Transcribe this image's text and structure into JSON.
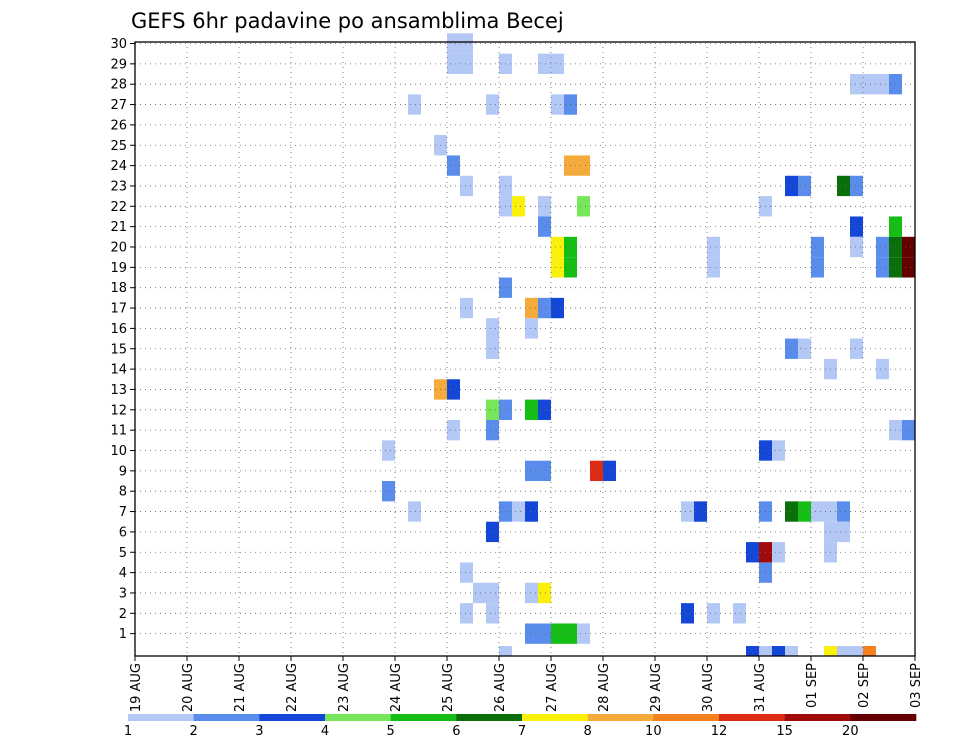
{
  "chart_data": {
    "type": "heatmap",
    "title": "GEFS 6hr padavine po ansamblima Becej",
    "xlabel": "",
    "ylabel": "",
    "x_tick_labels": [
      "19 AUG",
      "20 AUG",
      "21 AUG",
      "22 AUG",
      "23 AUG",
      "24 AUG",
      "25 AUG",
      "26 AUG",
      "27 AUG",
      "28 AUG",
      "29 AUG",
      "30 AUG",
      "31 AUG",
      "01 SEP",
      "02 SEP",
      "03 SEP"
    ],
    "y_tick_labels": [
      "1",
      "2",
      "3",
      "4",
      "5",
      "6",
      "7",
      "8",
      "9",
      "10",
      "11",
      "12",
      "13",
      "14",
      "15",
      "16",
      "17",
      "18",
      "19",
      "20",
      "21",
      "22",
      "23",
      "24",
      "25",
      "26",
      "27",
      "28",
      "29",
      "30"
    ],
    "grid": true,
    "time_steps_per_day": 4,
    "levels": [
      "1",
      "2",
      "3",
      "4",
      "5",
      "6",
      "7",
      "8",
      "10",
      "12",
      "15",
      "20"
    ],
    "palette": [
      "#b4c8f5",
      "#5a8ceb",
      "#1446d7",
      "#78e65a",
      "#14be14",
      "#0a6e0a",
      "#faf00a",
      "#f5aa3c",
      "#f5821e",
      "#dc2d14",
      "#a00a0a",
      "#640000"
    ],
    "cells": [
      {
        "member": 30,
        "step": 24,
        "level": 0
      },
      {
        "member": 30,
        "step": 25,
        "level": 0
      },
      {
        "member": 29,
        "step": 24,
        "level": 0
      },
      {
        "member": 29,
        "step": 25,
        "level": 0
      },
      {
        "member": 29,
        "step": 28,
        "level": 0
      },
      {
        "member": 29,
        "step": 31,
        "level": 0
      },
      {
        "member": 29,
        "step": 32,
        "level": 0
      },
      {
        "member": 28,
        "step": 55,
        "level": 0
      },
      {
        "member": 28,
        "step": 56,
        "level": 0
      },
      {
        "member": 28,
        "step": 57,
        "level": 0
      },
      {
        "member": 28,
        "step": 58,
        "level": 1
      },
      {
        "member": 27,
        "step": 21,
        "level": 0
      },
      {
        "member": 27,
        "step": 27,
        "level": 0
      },
      {
        "member": 27,
        "step": 32,
        "level": 0
      },
      {
        "member": 27,
        "step": 33,
        "level": 1
      },
      {
        "member": 25,
        "step": 23,
        "level": 0
      },
      {
        "member": 24,
        "step": 24,
        "level": 1
      },
      {
        "member": 24,
        "step": 33,
        "level": 7
      },
      {
        "member": 24,
        "step": 34,
        "level": 7
      },
      {
        "member": 23,
        "step": 25,
        "level": 0
      },
      {
        "member": 23,
        "step": 28,
        "level": 0
      },
      {
        "member": 23,
        "step": 50,
        "level": 2
      },
      {
        "member": 23,
        "step": 51,
        "level": 1
      },
      {
        "member": 23,
        "step": 54,
        "level": 5
      },
      {
        "member": 23,
        "step": 55,
        "level": 1
      },
      {
        "member": 22,
        "step": 28,
        "level": 0
      },
      {
        "member": 22,
        "step": 29,
        "level": 6
      },
      {
        "member": 22,
        "step": 31,
        "level": 0
      },
      {
        "member": 22,
        "step": 34,
        "level": 3
      },
      {
        "member": 22,
        "step": 48,
        "level": 0
      },
      {
        "member": 21,
        "step": 31,
        "level": 1
      },
      {
        "member": 21,
        "step": 55,
        "level": 2
      },
      {
        "member": 21,
        "step": 58,
        "level": 4
      },
      {
        "member": 20,
        "step": 32,
        "level": 6
      },
      {
        "member": 20,
        "step": 33,
        "level": 4
      },
      {
        "member": 20,
        "step": 44,
        "level": 0
      },
      {
        "member": 20,
        "step": 52,
        "level": 1
      },
      {
        "member": 20,
        "step": 55,
        "level": 0
      },
      {
        "member": 20,
        "step": 57,
        "level": 1
      },
      {
        "member": 20,
        "step": 58,
        "level": 5
      },
      {
        "member": 20,
        "step": 59,
        "level": 11
      },
      {
        "member": 19,
        "step": 32,
        "level": 6
      },
      {
        "member": 19,
        "step": 33,
        "level": 4
      },
      {
        "member": 19,
        "step": 44,
        "level": 0
      },
      {
        "member": 19,
        "step": 52,
        "level": 1
      },
      {
        "member": 19,
        "step": 57,
        "level": 1
      },
      {
        "member": 19,
        "step": 58,
        "level": 5
      },
      {
        "member": 19,
        "step": 59,
        "level": 11
      },
      {
        "member": 18,
        "step": 28,
        "level": 1
      },
      {
        "member": 17,
        "step": 25,
        "level": 0
      },
      {
        "member": 17,
        "step": 30,
        "level": 7
      },
      {
        "member": 17,
        "step": 31,
        "level": 1
      },
      {
        "member": 17,
        "step": 32,
        "level": 2
      },
      {
        "member": 16,
        "step": 27,
        "level": 0
      },
      {
        "member": 16,
        "step": 30,
        "level": 0
      },
      {
        "member": 15,
        "step": 27,
        "level": 0
      },
      {
        "member": 15,
        "step": 50,
        "level": 1
      },
      {
        "member": 15,
        "step": 51,
        "level": 0
      },
      {
        "member": 15,
        "step": 55,
        "level": 0
      },
      {
        "member": 14,
        "step": 53,
        "level": 0
      },
      {
        "member": 14,
        "step": 57,
        "level": 0
      },
      {
        "member": 13,
        "step": 23,
        "level": 7
      },
      {
        "member": 13,
        "step": 24,
        "level": 2
      },
      {
        "member": 12,
        "step": 27,
        "level": 3
      },
      {
        "member": 12,
        "step": 28,
        "level": 1
      },
      {
        "member": 12,
        "step": 30,
        "level": 4
      },
      {
        "member": 12,
        "step": 31,
        "level": 2
      },
      {
        "member": 11,
        "step": 24,
        "level": 0
      },
      {
        "member": 11,
        "step": 27,
        "level": 1
      },
      {
        "member": 11,
        "step": 58,
        "level": 0
      },
      {
        "member": 11,
        "step": 59,
        "level": 1
      },
      {
        "member": 10,
        "step": 19,
        "level": 0
      },
      {
        "member": 10,
        "step": 48,
        "level": 2
      },
      {
        "member": 10,
        "step": 49,
        "level": 0
      },
      {
        "member": 9,
        "step": 30,
        "level": 1
      },
      {
        "member": 9,
        "step": 31,
        "level": 1
      },
      {
        "member": 9,
        "step": 35,
        "level": 9
      },
      {
        "member": 9,
        "step": 36,
        "level": 2
      },
      {
        "member": 8,
        "step": 19,
        "level": 1
      },
      {
        "member": 7,
        "step": 21,
        "level": 0
      },
      {
        "member": 7,
        "step": 28,
        "level": 1
      },
      {
        "member": 7,
        "step": 29,
        "level": 0
      },
      {
        "member": 7,
        "step": 30,
        "level": 2
      },
      {
        "member": 7,
        "step": 42,
        "level": 0
      },
      {
        "member": 7,
        "step": 43,
        "level": 2
      },
      {
        "member": 7,
        "step": 48,
        "level": 1
      },
      {
        "member": 7,
        "step": 50,
        "level": 5
      },
      {
        "member": 7,
        "step": 51,
        "level": 4
      },
      {
        "member": 7,
        "step": 52,
        "level": 0
      },
      {
        "member": 7,
        "step": 53,
        "level": 0
      },
      {
        "member": 7,
        "step": 54,
        "level": 1
      },
      {
        "member": 6,
        "step": 27,
        "level": 2
      },
      {
        "member": 6,
        "step": 53,
        "level": 0
      },
      {
        "member": 6,
        "step": 54,
        "level": 0
      },
      {
        "member": 5,
        "step": 47,
        "level": 2
      },
      {
        "member": 5,
        "step": 48,
        "level": 10
      },
      {
        "member": 5,
        "step": 49,
        "level": 0
      },
      {
        "member": 5,
        "step": 53,
        "level": 0
      },
      {
        "member": 4,
        "step": 25,
        "level": 0
      },
      {
        "member": 4,
        "step": 48,
        "level": 1
      },
      {
        "member": 3,
        "step": 26,
        "level": 0
      },
      {
        "member": 3,
        "step": 27,
        "level": 0
      },
      {
        "member": 3,
        "step": 30,
        "level": 0
      },
      {
        "member": 3,
        "step": 31,
        "level": 6
      },
      {
        "member": 2,
        "step": 25,
        "level": 0
      },
      {
        "member": 2,
        "step": 27,
        "level": 0
      },
      {
        "member": 2,
        "step": 42,
        "level": 2
      },
      {
        "member": 2,
        "step": 44,
        "level": 0
      },
      {
        "member": 2,
        "step": 46,
        "level": 0
      },
      {
        "member": 1,
        "step": 30,
        "level": 1
      },
      {
        "member": 1,
        "step": 31,
        "level": 1
      },
      {
        "member": 1,
        "step": 32,
        "level": 4
      },
      {
        "member": 1,
        "step": 33,
        "level": 4
      },
      {
        "member": 1,
        "step": 34,
        "level": 0
      },
      {
        "member": 0,
        "step": 28,
        "level": 0
      },
      {
        "member": 0,
        "step": 47,
        "level": 2
      },
      {
        "member": 0,
        "step": 48,
        "level": 0
      },
      {
        "member": 0,
        "step": 49,
        "level": 2
      },
      {
        "member": 0,
        "step": 50,
        "level": 0
      },
      {
        "member": 0,
        "step": 53,
        "level": 6
      },
      {
        "member": 0,
        "step": 54,
        "level": 0
      },
      {
        "member": 0,
        "step": 55,
        "level": 0
      },
      {
        "member": 0,
        "step": 56,
        "level": 8
      }
    ]
  }
}
